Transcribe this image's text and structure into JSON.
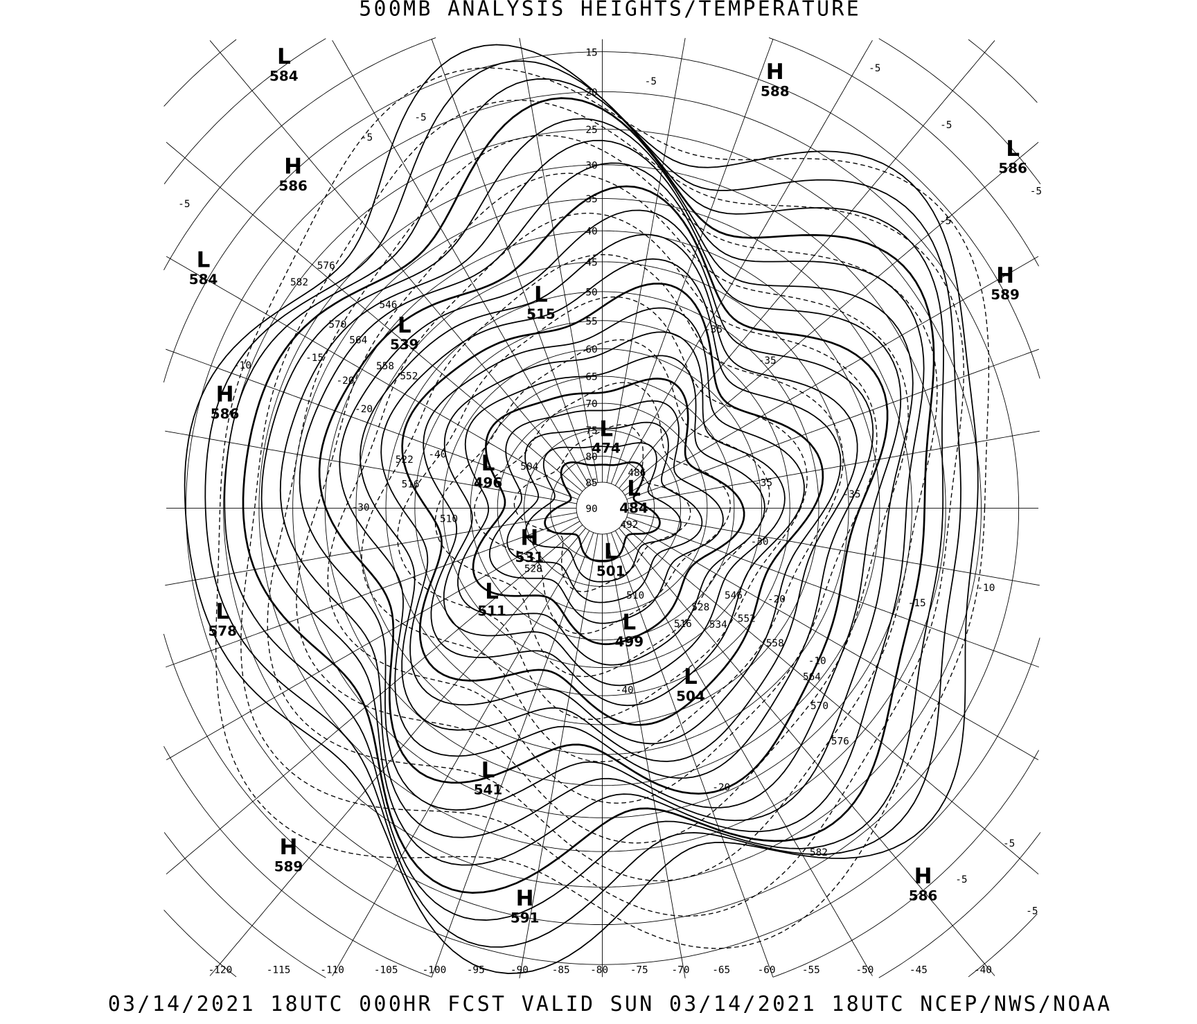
{
  "title": "500MB ANALYSIS  HEIGHTS/TEMPERATURE",
  "footer": "03/14/2021 18UTC 000HR FCST VALID SUN 03/14/2021 18UTC  NCEP/NWS/NOAA",
  "colors": {
    "background": "#ffffff",
    "lines": "#000000"
  },
  "projection": "polar stereographic (north pole)",
  "latitude_labels": [
    "15",
    "20",
    "25",
    "30",
    "35",
    "40",
    "45",
    "50",
    "55",
    "60",
    "65",
    "70",
    "75",
    "80",
    "85",
    "90"
  ],
  "longitude_labels": [
    "-120",
    "-115",
    "-110",
    "-105",
    "-100",
    "-95",
    "-90",
    "-85",
    "-80",
    "-75",
    "-70",
    "-65",
    "-60",
    "-55",
    "-50",
    "-45",
    "-40"
  ],
  "pressure_centers": [
    {
      "type": "L",
      "value": "584"
    },
    {
      "type": "H",
      "value": "588"
    },
    {
      "type": "L",
      "value": "586"
    },
    {
      "type": "H",
      "value": "586"
    },
    {
      "type": "L",
      "value": "584"
    },
    {
      "type": "H",
      "value": "589"
    },
    {
      "type": "L",
      "value": "539"
    },
    {
      "type": "L",
      "value": "515"
    },
    {
      "type": "H",
      "value": "586"
    },
    {
      "type": "L",
      "value": "474"
    },
    {
      "type": "L",
      "value": "496"
    },
    {
      "type": "L",
      "value": "484"
    },
    {
      "type": "H",
      "value": "531"
    },
    {
      "type": "L",
      "value": "501"
    },
    {
      "type": "L",
      "value": "511"
    },
    {
      "type": "L",
      "value": "578"
    },
    {
      "type": "L",
      "value": "499"
    },
    {
      "type": "L",
      "value": "504"
    },
    {
      "type": "L",
      "value": "541"
    },
    {
      "type": "H",
      "value": "589"
    },
    {
      "type": "H",
      "value": "591"
    },
    {
      "type": "H",
      "value": "586"
    }
  ],
  "height_contour_labels": [
    "576",
    "582",
    "570",
    "564",
    "546",
    "558",
    "552",
    "522",
    "516",
    "510",
    "528",
    "558",
    "564",
    "570",
    "576",
    "582",
    "546",
    "552",
    "534",
    "528",
    "516",
    "510",
    "492",
    "486",
    "504"
  ],
  "temperature_contour_labels": [
    "-5",
    "-5",
    "-5",
    "-5",
    "-5",
    "-5",
    "-5",
    "-5",
    "-10",
    "-15",
    "-20",
    "-20",
    "-30",
    "-35",
    "-35",
    "-35",
    "-35",
    "-30",
    "-20",
    "-15",
    "-10",
    "-10",
    "-40",
    "-40",
    "-20",
    "-5",
    "-5",
    "-5"
  ]
}
